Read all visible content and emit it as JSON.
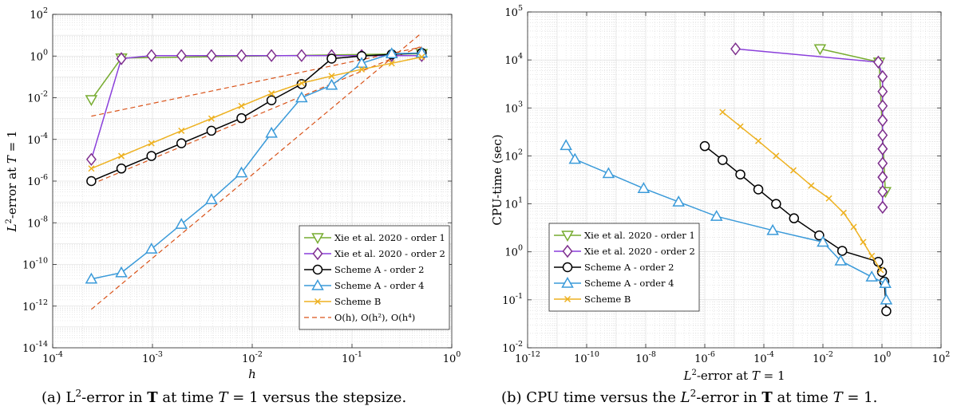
{
  "colors": {
    "green": "#77AC30",
    "purple": "#7E2F8E",
    "purple_line": "#8A3FDB",
    "black": "#000000",
    "blue": "#3A9AD9",
    "yellow": "#EDB120",
    "ref": "#D95319",
    "grid": "#d9d9d9"
  },
  "chart_data": [
    {
      "type": "line",
      "xlabel": "h",
      "ylabel": "L²-error at T = 1",
      "xscale": "log",
      "yscale": "log",
      "xlim": [
        0.0001,
        1
      ],
      "ylim": [
        1e-14,
        100
      ],
      "xticks": [
        0.0001,
        0.001,
        0.01,
        0.1,
        1
      ],
      "xtick_labels": [
        [
          "10",
          "-4"
        ],
        [
          "10",
          "-3"
        ],
        [
          "10",
          "-2"
        ],
        [
          "10",
          "-1"
        ],
        [
          "10",
          "0"
        ]
      ],
      "yticks": [
        1e-14,
        1e-12,
        1e-10,
        1e-08,
        1e-06,
        0.0001,
        0.01,
        1,
        100
      ],
      "ytick_labels": [
        [
          "10",
          "-14"
        ],
        [
          "10",
          "-12"
        ],
        [
          "10",
          "-10"
        ],
        [
          "10",
          "-8"
        ],
        [
          "10",
          "-6"
        ],
        [
          "10",
          "-4"
        ],
        [
          "10",
          "-2"
        ],
        [
          "10",
          "0"
        ],
        [
          "10",
          "2"
        ]
      ],
      "grid": true,
      "legend_position": "bottom-right",
      "series": [
        {
          "name": "Xie et al. 2020 - order 1",
          "marker": "tri-down",
          "color": "#77AC30",
          "x": [
            0.000244,
            0.000488,
            0.5
          ],
          "y": [
            0.008,
            0.8,
            1.3
          ]
        },
        {
          "name": "Xie et al. 2020 - order 2",
          "marker": "diamond",
          "color": "#7E2F8E",
          "line_color": "#8A3FDB",
          "x": [
            0.000244,
            0.000488,
            0.000977,
            0.00195,
            0.0039,
            0.0078,
            0.0156,
            0.03125,
            0.0625,
            0.125,
            0.25,
            0.5
          ],
          "y": [
            1.1e-05,
            0.75,
            1.05,
            1.05,
            1.05,
            1.05,
            1.05,
            1.05,
            1.05,
            1.05,
            1.05,
            1.05
          ]
        },
        {
          "name": "Scheme A - order 2",
          "marker": "circle",
          "color": "#000000",
          "x": [
            0.000244,
            0.000488,
            0.000977,
            0.00195,
            0.0039,
            0.0078,
            0.0156,
            0.03125,
            0.0625,
            0.125,
            0.25,
            0.5
          ],
          "y": [
            1e-06,
            4e-06,
            1.6e-05,
            6.5e-05,
            0.00026,
            0.00105,
            0.0075,
            0.045,
            0.75,
            1.0,
            1.2,
            1.4
          ]
        },
        {
          "name": "Scheme A - order 4",
          "marker": "tri-up",
          "color": "#3A9AD9",
          "x": [
            0.000244,
            0.000488,
            0.000977,
            0.00195,
            0.0039,
            0.0078,
            0.0156,
            0.03125,
            0.0625,
            0.125,
            0.25,
            0.5
          ],
          "y": [
            2e-11,
            4e-11,
            5.5e-10,
            8.5e-09,
            1.3e-07,
            2.5e-06,
            0.0002,
            0.01,
            0.04,
            0.45,
            1.3,
            1.4
          ]
        },
        {
          "name": "Scheme B",
          "marker": "x",
          "color": "#EDB120",
          "x": [
            0.000244,
            0.000488,
            0.000977,
            0.00195,
            0.0039,
            0.0078,
            0.0156,
            0.03125,
            0.0625,
            0.125,
            0.25,
            0.5
          ],
          "y": [
            4e-06,
            1.6e-05,
            6.5e-05,
            0.00026,
            0.001,
            0.004,
            0.016,
            0.05,
            0.11,
            0.23,
            0.45,
            0.9
          ]
        }
      ],
      "reference": {
        "name": "O(h), O(h²), O(h⁴)",
        "color": "#D95319",
        "lines": [
          {
            "x": [
              0.000244,
              0.5
            ],
            "y": [
              0.0013,
              2.7
            ]
          },
          {
            "x": [
              0.000244,
              0.5
            ],
            "y": [
              7e-07,
              3.0
            ]
          },
          {
            "x": [
              0.000244,
              0.5
            ],
            "y": [
              7e-13,
              13
            ]
          }
        ]
      }
    },
    {
      "type": "line",
      "xlabel": "L²-error at T = 1",
      "ylabel": "CPU-time (sec)",
      "xscale": "log",
      "yscale": "log",
      "xlim": [
        1e-12,
        100
      ],
      "ylim": [
        0.01,
        100000
      ],
      "xticks": [
        1e-12,
        1e-10,
        1e-08,
        1e-06,
        0.0001,
        0.01,
        1,
        100
      ],
      "xtick_labels": [
        [
          "10",
          "-12"
        ],
        [
          "10",
          "-10"
        ],
        [
          "10",
          "-8"
        ],
        [
          "10",
          "-6"
        ],
        [
          "10",
          "-4"
        ],
        [
          "10",
          "-2"
        ],
        [
          "10",
          "0"
        ],
        [
          "10",
          "2"
        ]
      ],
      "yticks": [
        0.01,
        0.1,
        1,
        10,
        100,
        1000,
        10000,
        100000
      ],
      "ytick_labels": [
        [
          "10",
          "-2"
        ],
        [
          "10",
          "-1"
        ],
        [
          "10",
          "0"
        ],
        [
          "10",
          "1"
        ],
        [
          "10",
          "2"
        ],
        [
          "10",
          "3"
        ],
        [
          "10",
          "4"
        ],
        [
          "10",
          "5"
        ]
      ],
      "grid": true,
      "legend_position": "bottom-left",
      "series": [
        {
          "name": "Xie et al. 2020 - order 1",
          "marker": "tri-down",
          "color": "#77AC30",
          "x": [
            0.008,
            0.8,
            1.3
          ],
          "y": [
            17000,
            9000,
            18
          ]
        },
        {
          "name": "Xie et al. 2020 - order 2",
          "marker": "diamond",
          "color": "#7E2F8E",
          "line_color": "#8A3FDB",
          "x": [
            1.1e-05,
            0.75,
            1.05,
            1.05,
            1.05,
            1.05,
            1.05,
            1.05,
            1.05,
            1.05,
            1.05,
            1.05,
            1.05,
            1.05,
            1.05,
            1.05
          ],
          "y": [
            17000,
            9000,
            4500,
            2200,
            1100,
            550,
            270,
            140,
            70,
            36,
            18,
            8.5,
            8.5,
            36,
            140,
            550
          ]
        },
        {
          "name": "Scheme A - order 2",
          "marker": "circle",
          "color": "#000000",
          "x": [
            1e-06,
            4e-06,
            1.6e-05,
            6.5e-05,
            0.00026,
            0.00105,
            0.0075,
            0.045,
            0.75,
            1.0,
            1.2,
            1.4
          ],
          "y": [
            160,
            82,
            41,
            20,
            10,
            5,
            2.2,
            1.05,
            0.62,
            0.38,
            0.24,
            0.058
          ]
        },
        {
          "name": "Scheme A - order 4",
          "marker": "tri-up",
          "color": "#3A9AD9",
          "x": [
            2e-11,
            4e-11,
            5.5e-10,
            8.5e-09,
            1.3e-07,
            2.5e-06,
            0.0002,
            0.01,
            0.04,
            0.45,
            1.3,
            1.4
          ],
          "y": [
            165,
            85,
            43,
            21,
            11,
            5.5,
            2.8,
            1.6,
            0.65,
            0.3,
            0.22,
            0.1
          ]
        },
        {
          "name": "Scheme B",
          "marker": "x",
          "color": "#EDB120",
          "x": [
            4e-06,
            1.6e-05,
            6.5e-05,
            0.00026,
            0.001,
            0.004,
            0.016,
            0.05,
            0.11,
            0.23,
            0.45,
            0.9
          ],
          "y": [
            820,
            410,
            205,
            100,
            50,
            24,
            13,
            6.5,
            3.3,
            1.6,
            0.82,
            0.42
          ]
        }
      ]
    }
  ],
  "captions": [
    {
      "label": "(a)",
      "parts": [
        {
          "t": " L"
        },
        {
          "t": "2",
          "sup": true
        },
        {
          "t": "-error in "
        },
        {
          "t": "T",
          "bold": true
        },
        {
          "t": " at time "
        },
        {
          "t": "T",
          "it": true
        },
        {
          "t": " = 1 versus the stepsize."
        }
      ]
    },
    {
      "label": "(b)",
      "parts": [
        {
          "t": " CPU time versus the "
        },
        {
          "t": "L",
          "it": true
        },
        {
          "t": "2",
          "sup": true
        },
        {
          "t": "-error in "
        },
        {
          "t": "T",
          "bold": true
        },
        {
          "t": " at time "
        },
        {
          "t": "T",
          "it": true
        },
        {
          "t": " = 1."
        }
      ]
    }
  ]
}
